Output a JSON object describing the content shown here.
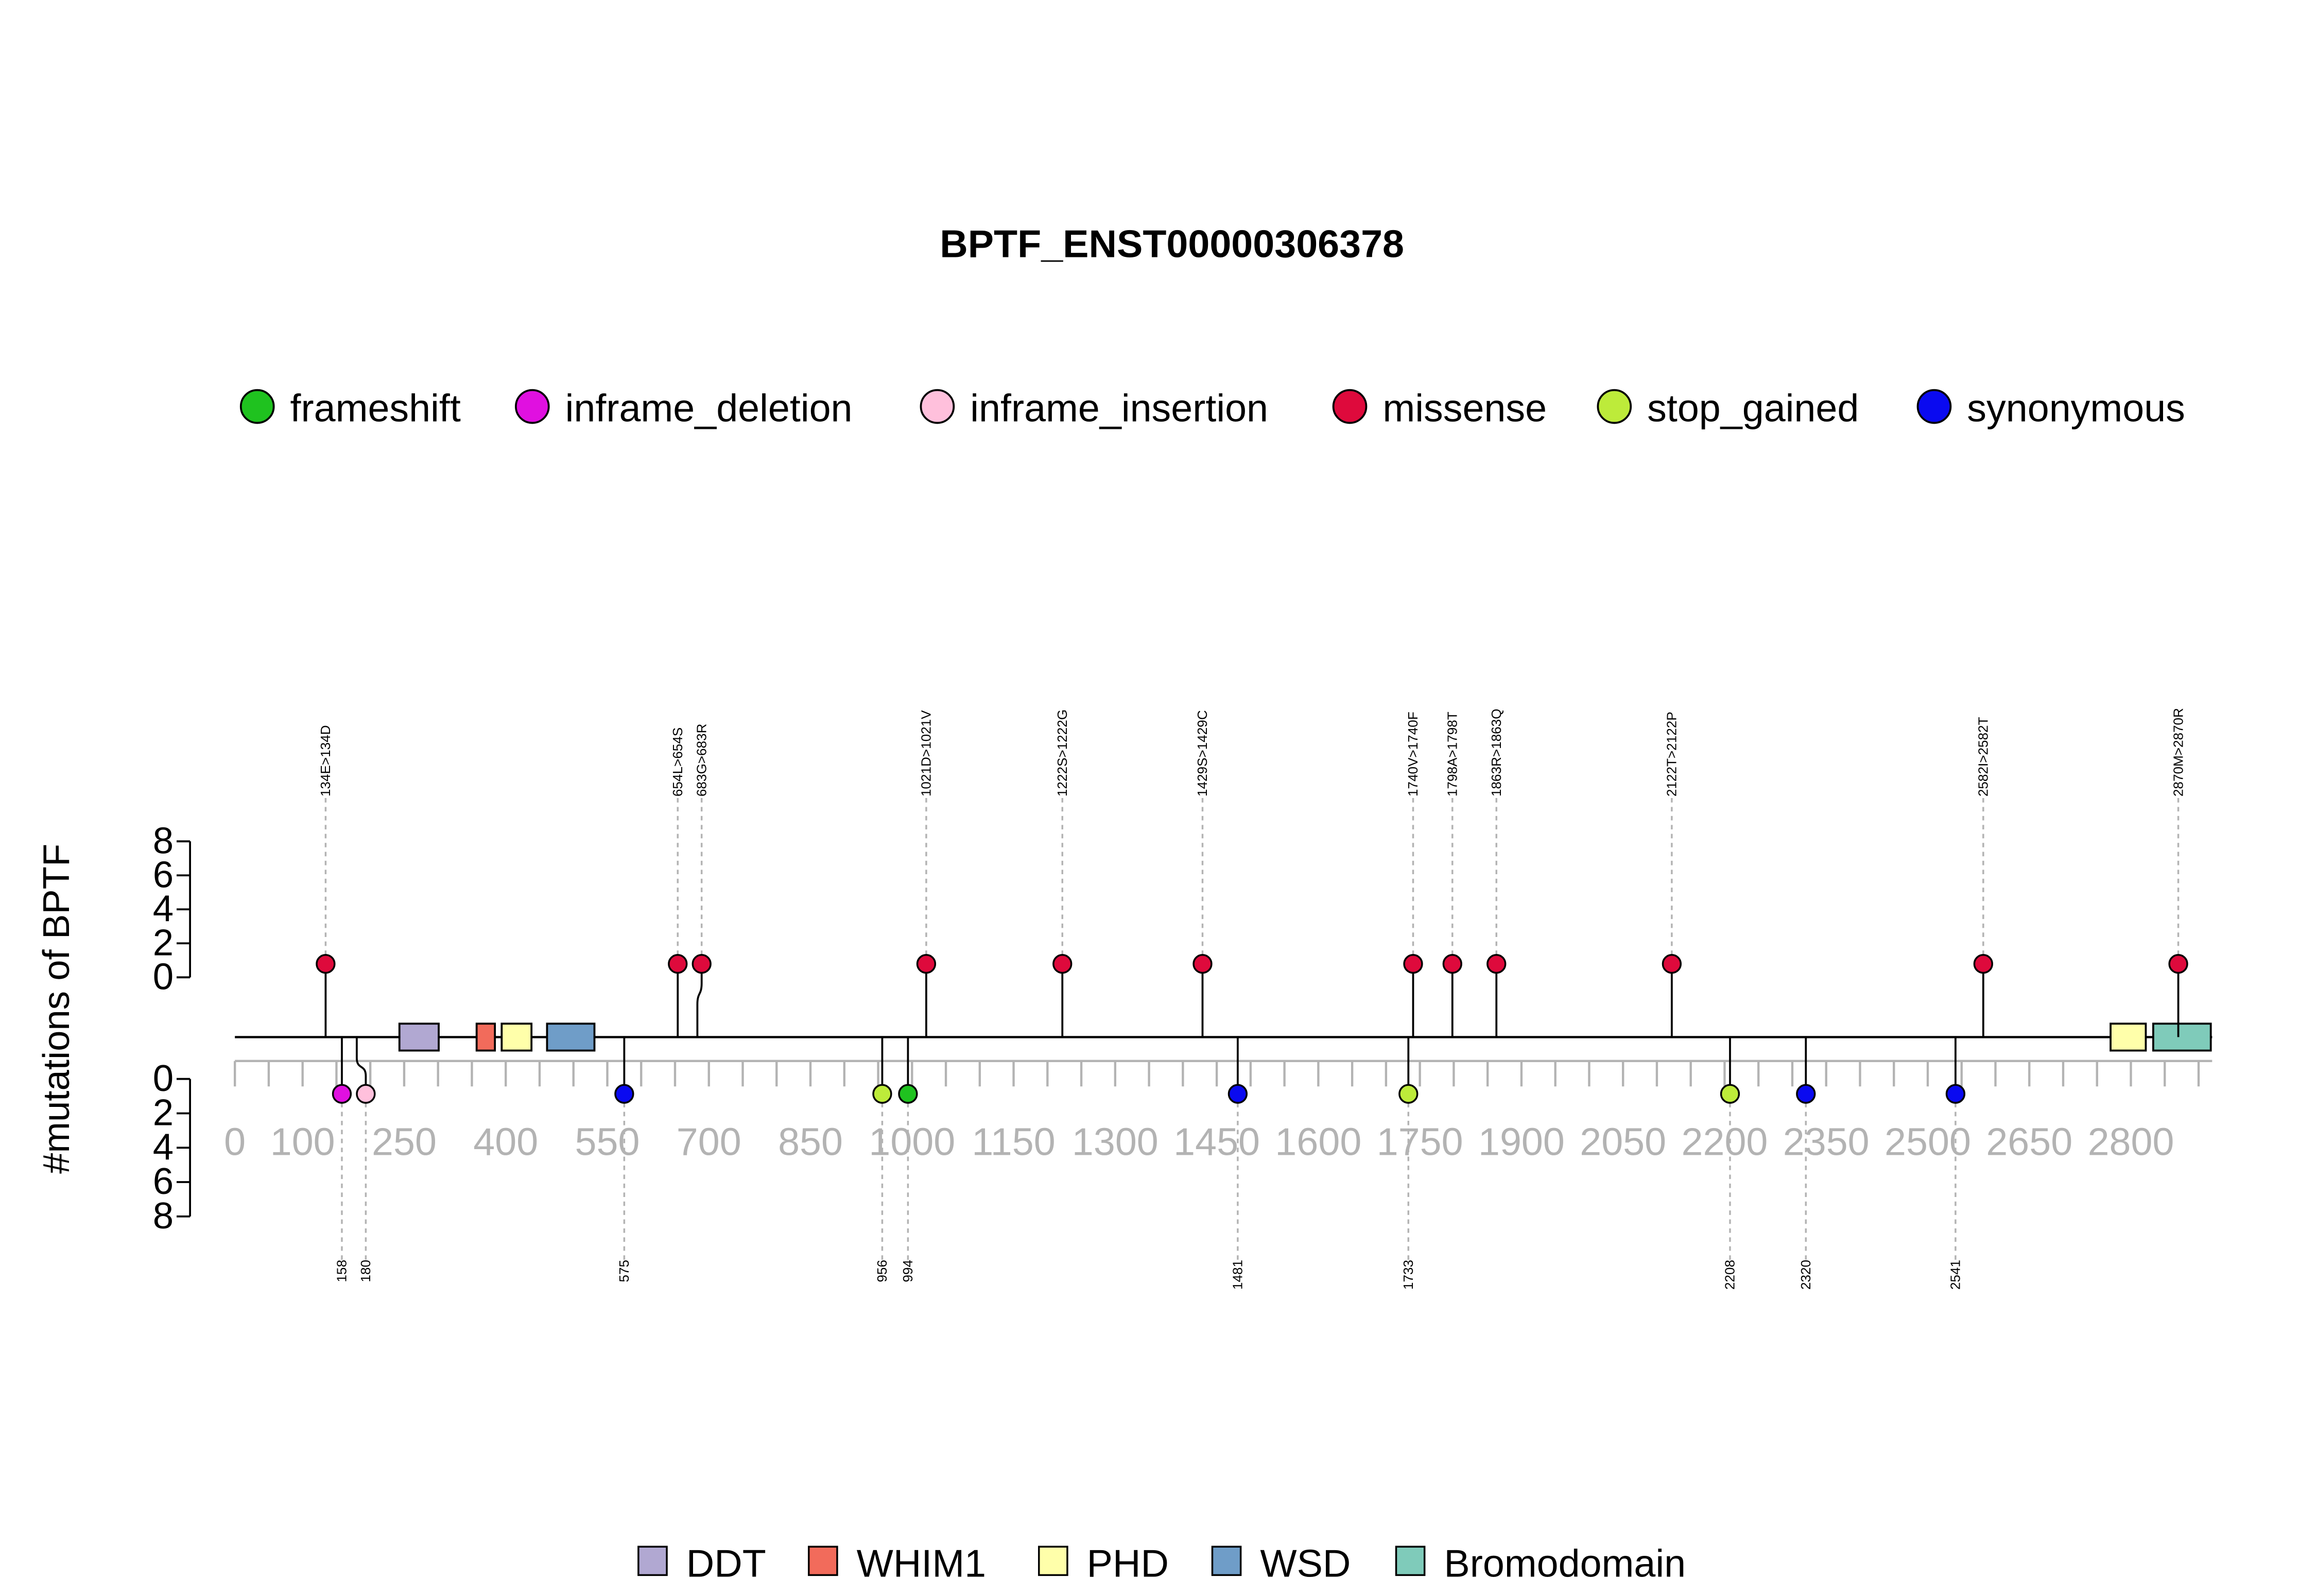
{
  "chart_data": {
    "type": "lollipop",
    "title": "BPTF_ENST00000306378",
    "ylabel": "#mutations of BPTF",
    "xlim": [
      0,
      2920
    ],
    "x_ticks": [
      0,
      100,
      250,
      400,
      550,
      700,
      850,
      1000,
      1150,
      1300,
      1450,
      1600,
      1750,
      1900,
      2050,
      2200,
      2350,
      2500,
      2650,
      2800
    ],
    "y_ticks_top": [
      0,
      2,
      4,
      6,
      8
    ],
    "y_ticks_bottom": [
      0,
      2,
      4,
      6,
      8
    ],
    "legend_position": "top-center",
    "domain_legend_position": "bottom-center",
    "categories": [
      {
        "name": "frameshift",
        "color": "#1FC21F"
      },
      {
        "name": "inframe_deletion",
        "color": "#E010E0"
      },
      {
        "name": "inframe_insertion",
        "color": "#FFC0DC"
      },
      {
        "name": "missense",
        "color": "#DE0A3C"
      },
      {
        "name": "stop_gained",
        "color": "#BDEB3A"
      },
      {
        "name": "synonymous",
        "color": "#0A0AF0"
      }
    ],
    "domains_legend": [
      {
        "name": "DDT",
        "color": "#B1A8D2"
      },
      {
        "name": "WHIM1",
        "color": "#F26B5B"
      },
      {
        "name": "PHD",
        "color": "#FFFFAA"
      },
      {
        "name": "WSD",
        "color": "#6F9DC8"
      },
      {
        "name": "Bromodomain",
        "color": "#7FCBBA"
      }
    ],
    "domains": [
      {
        "name": "DDT",
        "start": 243,
        "end": 301
      },
      {
        "name": "WHIM1",
        "start": 357,
        "end": 384
      },
      {
        "name": "PHD",
        "start": 394,
        "end": 438
      },
      {
        "name": "WSD",
        "start": 461,
        "end": 531
      },
      {
        "name": "PHD",
        "start": 2770,
        "end": 2822
      },
      {
        "name": "Bromodomain",
        "start": 2833,
        "end": 2918
      }
    ],
    "mutations_top": [
      {
        "label": "134E>134D",
        "pos": 134,
        "count": 1,
        "type": "missense"
      },
      {
        "label": "654L>654S",
        "pos": 654,
        "count": 1,
        "type": "missense"
      },
      {
        "label": "683G>683R",
        "pos": 683,
        "count": 1,
        "type": "missense"
      },
      {
        "label": "1021D>1021V",
        "pos": 1021,
        "count": 1,
        "type": "missense"
      },
      {
        "label": "1222S>1222G",
        "pos": 1222,
        "count": 1,
        "type": "missense"
      },
      {
        "label": "1429S>1429C",
        "pos": 1429,
        "count": 1,
        "type": "missense"
      },
      {
        "label": "1740V>1740F",
        "pos": 1740,
        "count": 1,
        "type": "missense"
      },
      {
        "label": "1798A>1798T",
        "pos": 1798,
        "count": 1,
        "type": "missense"
      },
      {
        "label": "1863R>1863Q",
        "pos": 1863,
        "count": 1,
        "type": "missense"
      },
      {
        "label": "2122T>2122P",
        "pos": 2122,
        "count": 1,
        "type": "missense"
      },
      {
        "label": "2582I>2582T",
        "pos": 2582,
        "count": 1,
        "type": "missense"
      },
      {
        "label": "2870M>2870R",
        "pos": 2870,
        "count": 1,
        "type": "missense"
      }
    ],
    "mutations_bottom": [
      {
        "label": "158",
        "pos": 158,
        "count": 1,
        "type": "inframe_deletion"
      },
      {
        "label": "180",
        "pos": 180,
        "count": 1,
        "type": "inframe_insertion"
      },
      {
        "label": "575",
        "pos": 575,
        "count": 1,
        "type": "synonymous"
      },
      {
        "label": "956",
        "pos": 956,
        "count": 1,
        "type": "stop_gained"
      },
      {
        "label": "994",
        "pos": 994,
        "count": 1,
        "type": "frameshift"
      },
      {
        "label": "1481",
        "pos": 1481,
        "count": 1,
        "type": "synonymous"
      },
      {
        "label": "1733",
        "pos": 1733,
        "count": 1,
        "type": "stop_gained"
      },
      {
        "label": "2208",
        "pos": 2208,
        "count": 1,
        "type": "stop_gained"
      },
      {
        "label": "2320",
        "pos": 2320,
        "count": 1,
        "type": "synonymous"
      },
      {
        "label": "2541",
        "pos": 2541,
        "count": 1,
        "type": "synonymous"
      }
    ]
  }
}
